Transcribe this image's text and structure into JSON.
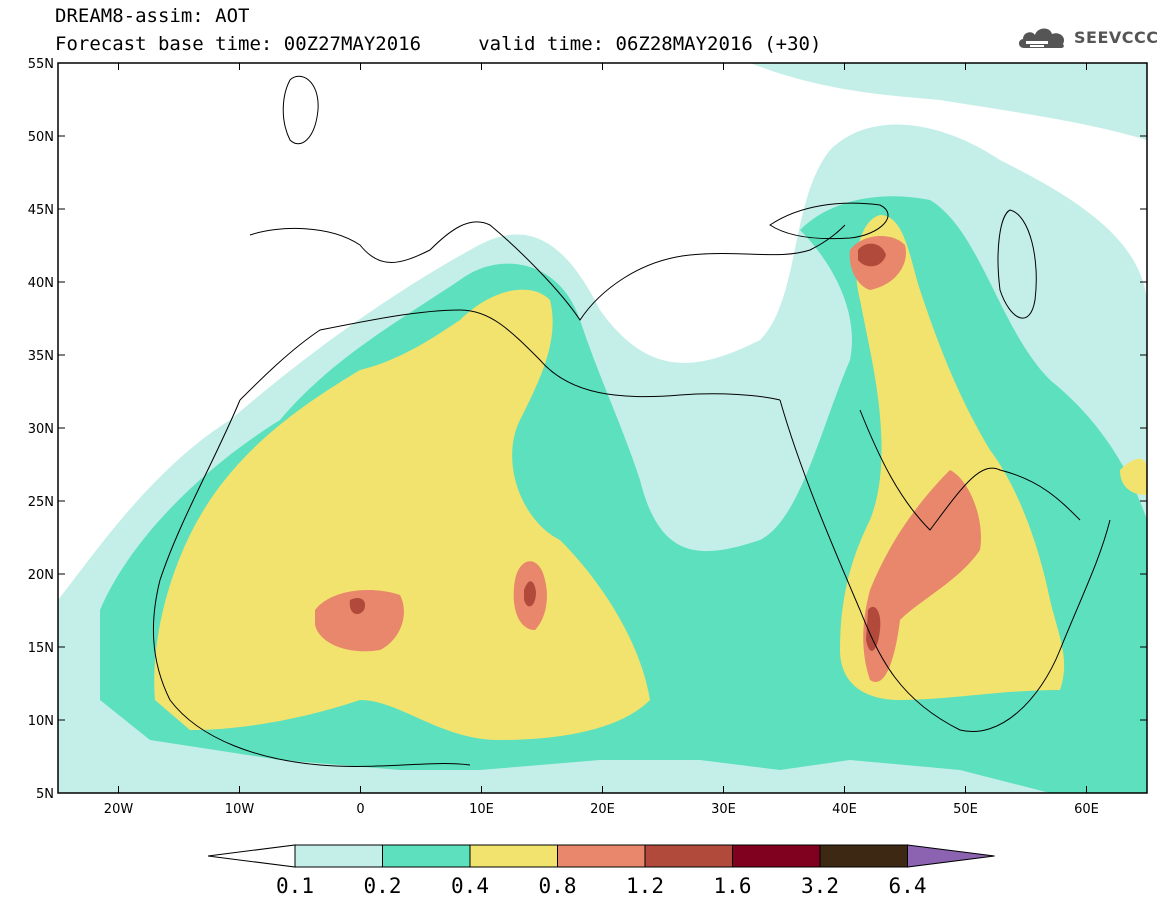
{
  "header": {
    "title_line1": "DREAM8-assim: AOT",
    "title_line2": "Forecast base time: 00Z27MAY2016     valid time: 06Z28MAY2016 (+30)",
    "logo_text": "SEEVCCC",
    "logo_icon": "cloud-logo-icon"
  },
  "map": {
    "lon_range": [
      -25,
      65
    ],
    "lat_range": [
      5,
      55
    ],
    "lat_ticks": [
      "55N",
      "50N",
      "45N",
      "40N",
      "35N",
      "30N",
      "25N",
      "20N",
      "15N",
      "10N",
      "5N"
    ],
    "lon_ticks": [
      "20W",
      "10W",
      "0",
      "10E",
      "20E",
      "30E",
      "40E",
      "50E",
      "60E"
    ],
    "background_color": "#ffffff",
    "coastline_color": "#000000"
  },
  "colorbar": {
    "labels": [
      "0.1",
      "0.2",
      "0.4",
      "0.8",
      "1.2",
      "1.6",
      "3.2",
      "6.4"
    ],
    "colors": [
      "#ffffff",
      "#c4efe8",
      "#5ce0bd",
      "#f2e36e",
      "#e8876b",
      "#b24a3c",
      "#800020",
      "#3d2814",
      "#8b63b0"
    ]
  }
}
